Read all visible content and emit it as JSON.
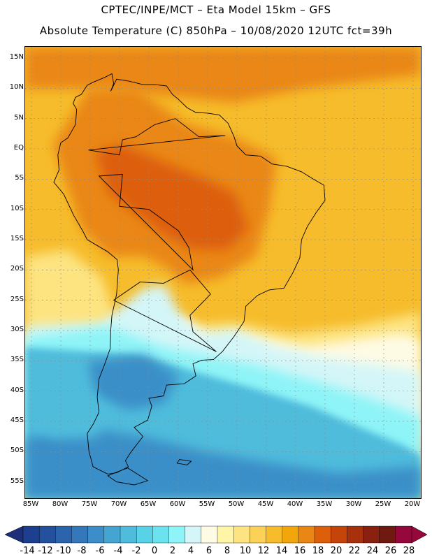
{
  "header": {
    "line1": "CPTEC/INPE/MCT –  Eta Model 15km – GFS",
    "line2": "Absolute Temperature (C) 850hPa – 10/08/2020 12UTC fct=39h"
  },
  "axes": {
    "lat_labels": [
      "15N",
      "10N",
      "5N",
      "EQ",
      "5S",
      "10S",
      "15S",
      "20S",
      "25S",
      "30S",
      "35S",
      "40S",
      "45S",
      "50S",
      "55S"
    ],
    "lat_values": [
      15,
      10,
      5,
      0,
      -5,
      -10,
      -15,
      -20,
      -25,
      -30,
      -35,
      -40,
      -45,
      -50,
      -55
    ],
    "lon_labels": [
      "85W",
      "80W",
      "75W",
      "70W",
      "65W",
      "60W",
      "55W",
      "50W",
      "45W",
      "40W",
      "35W",
      "30W",
      "25W",
      "20W"
    ],
    "lon_values": [
      -85,
      -80,
      -75,
      -70,
      -65,
      -60,
      -55,
      -50,
      -45,
      -40,
      -35,
      -30,
      -25,
      -20
    ]
  },
  "colorbar": {
    "labels": [
      "-14",
      "-12",
      "-10",
      "-8",
      "-6",
      "-4",
      "-2",
      "0",
      "2",
      "4",
      "6",
      "8",
      "10",
      "12",
      "14",
      "16",
      "18",
      "20",
      "22",
      "24",
      "26",
      "28"
    ],
    "colors": [
      "#1d3f8f",
      "#24519e",
      "#2c63ad",
      "#3477bb",
      "#3b8ec7",
      "#45a5d1",
      "#4fbcdc",
      "#58d2e6",
      "#6ae3ef",
      "#8ef4f7",
      "#d4f6f8",
      "#fefbe5",
      "#fff5a6",
      "#fde481",
      "#fbd257",
      "#f6bc2b",
      "#f2a60c",
      "#ea8714",
      "#dd5f0a",
      "#c5440a",
      "#a8300c",
      "#8a200f",
      "#6e1a10",
      "#96083c"
    ],
    "under_color": "#1d2f7a",
    "over_color": "#96083c"
  },
  "map": {
    "regions": {
      "cold_core": "#3a8fc8",
      "cold_outer": "#4fbcdc",
      "cool": "#8ef4f7",
      "mild": "#d4f6f8",
      "neutral": "#fefbe5",
      "warm_light": "#fde481",
      "warm": "#f6bc2b",
      "hot": "#ea8714",
      "hotter": "#dd5f0a"
    },
    "coast_color": "#000000",
    "grid_color": "#8a8a8a"
  }
}
